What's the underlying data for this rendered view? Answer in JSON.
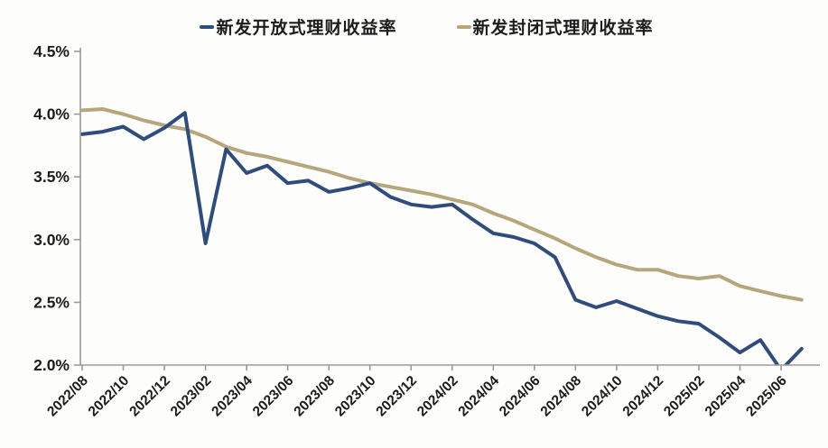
{
  "chart_data": {
    "type": "line",
    "title": "",
    "xlabel": "",
    "ylabel": "",
    "ylim": [
      2.0,
      4.5
    ],
    "yticks": [
      2.0,
      2.5,
      3.0,
      3.5,
      4.0,
      4.5
    ],
    "ytick_labels": [
      "2.0%",
      "2.5%",
      "3.0%",
      "3.5%",
      "4.0%",
      "4.5%"
    ],
    "grid": false,
    "legend_position": "top",
    "xtick_every": 2,
    "xtick_labels": [
      "2022/08",
      "2022/10",
      "2022/12",
      "2023/02",
      "2023/04",
      "2023/06",
      "2023/08",
      "2023/10",
      "2023/12",
      "2024/02",
      "2024/04",
      "2024/06",
      "2024/08",
      "2024/10",
      "2024/12",
      "2025/02",
      "2025/04",
      "2025/06"
    ],
    "x": [
      "2022/08",
      "2022/09",
      "2022/10",
      "2022/11",
      "2022/12",
      "2023/01",
      "2023/02",
      "2023/03",
      "2023/04",
      "2023/05",
      "2023/06",
      "2023/07",
      "2023/08",
      "2023/09",
      "2023/10",
      "2023/11",
      "2023/12",
      "2024/01",
      "2024/02",
      "2024/03",
      "2024/04",
      "2024/05",
      "2024/06",
      "2024/07",
      "2024/08",
      "2024/09",
      "2024/10",
      "2024/11",
      "2024/12",
      "2025/01",
      "2025/02",
      "2025/03",
      "2025/04",
      "2025/05",
      "2025/06",
      "2025/07"
    ],
    "series": [
      {
        "name": "新发开放式理财收益率",
        "color": "#2e4d7c",
        "values": [
          3.84,
          3.86,
          3.9,
          3.8,
          3.89,
          4.01,
          2.97,
          3.72,
          3.53,
          3.59,
          3.45,
          3.47,
          3.38,
          3.41,
          3.45,
          3.34,
          3.28,
          3.26,
          3.28,
          3.16,
          3.05,
          3.02,
          2.97,
          2.86,
          2.52,
          2.46,
          2.51,
          2.45,
          2.39,
          2.35,
          2.33,
          2.22,
          2.1,
          2.2,
          1.96,
          2.13
        ]
      },
      {
        "name": "新发封闭式理财收益率",
        "color": "#b5a67c",
        "values": [
          4.03,
          4.04,
          4.0,
          3.95,
          3.91,
          3.88,
          3.82,
          3.74,
          3.69,
          3.66,
          3.62,
          3.58,
          3.54,
          3.49,
          3.45,
          3.42,
          3.39,
          3.36,
          3.32,
          3.28,
          3.21,
          3.15,
          3.08,
          3.01,
          2.93,
          2.86,
          2.8,
          2.76,
          2.76,
          2.71,
          2.69,
          2.71,
          2.63,
          2.59,
          2.55,
          2.52
        ]
      }
    ],
    "axis_color": "#9b9b9b",
    "tick_label_color": "#1c1c1c"
  }
}
